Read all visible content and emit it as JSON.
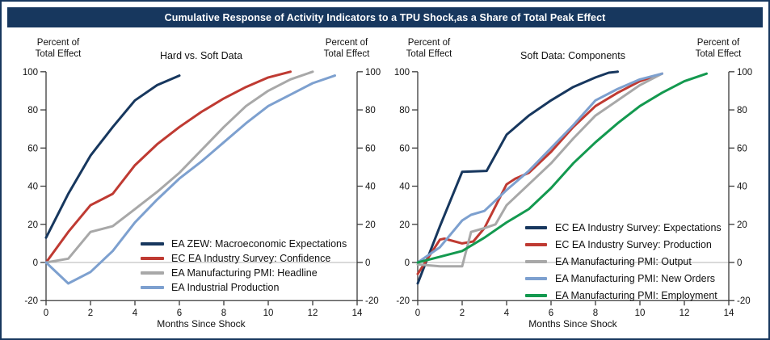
{
  "title_bar": {
    "text": "Cumulative Response of Activity Indicators to a TPU Shock,as a Share of Total Peak Effect",
    "bg_color": "#17375e",
    "text_color": "#ffffff"
  },
  "colors": {
    "navy": "#17375e",
    "red": "#bf3a32",
    "gray": "#a8a8a8",
    "light_blue": "#7da0cf",
    "green": "#13994f",
    "axis": "#3a3a3a",
    "zero_gridline": "#b5b5b5"
  },
  "chart_data": [
    {
      "type": "line",
      "title": "Hard vs. Soft Data",
      "y_header_lines": [
        "Percent of",
        "Total Effect"
      ],
      "x_label": "Months Since Shock",
      "xlim": [
        0,
        14
      ],
      "ylim": [
        -20,
        100
      ],
      "x_ticks": [
        0,
        2,
        4,
        6,
        8,
        10,
        12,
        14
      ],
      "y_ticks": [
        -20,
        0,
        20,
        40,
        60,
        80,
        100
      ],
      "gridline_y": 0,
      "legend_position": "inside-bottom-right",
      "series": [
        {
          "name": "EA ZEW: Macroeconomic Expectations",
          "color": "#17375e",
          "x": [
            0,
            1,
            2,
            3,
            4,
            5,
            6
          ],
          "values": [
            13,
            36,
            56,
            71,
            85,
            93,
            98
          ]
        },
        {
          "name": "EC EA Industry Survey: Confidence",
          "color": "#bf3a32",
          "x": [
            0,
            1,
            2,
            3,
            4,
            5,
            6,
            7,
            8,
            9,
            10,
            11
          ],
          "values": [
            0,
            16,
            30,
            36,
            51,
            62,
            71,
            79,
            86,
            92,
            97,
            100
          ]
        },
        {
          "name": "EA Manufacturing PMI: Headline",
          "color": "#a8a8a8",
          "x": [
            0,
            1,
            2,
            3,
            4,
            5,
            6,
            7,
            8,
            9,
            10,
            11,
            12
          ],
          "values": [
            0,
            2,
            16,
            19,
            28,
            37,
            47,
            59,
            71,
            82,
            90,
            96,
            100
          ]
        },
        {
          "name": "EA Industrial Production",
          "color": "#7da0cf",
          "x": [
            0,
            1,
            2,
            3,
            4,
            5,
            6,
            7,
            8,
            9,
            10,
            11,
            12,
            13
          ],
          "values": [
            0,
            -11,
            -5,
            6,
            21,
            33,
            44,
            53,
            63,
            73,
            82,
            88,
            94,
            98
          ]
        }
      ]
    },
    {
      "type": "line",
      "title": "Soft Data: Components",
      "y_header_lines": [
        "Percent of",
        "Total Effect"
      ],
      "x_label": "Months Since Shock",
      "xlim": [
        0,
        14
      ],
      "ylim": [
        -20,
        100
      ],
      "x_ticks": [
        0,
        2,
        4,
        6,
        8,
        10,
        12,
        14
      ],
      "y_ticks": [
        -20,
        0,
        20,
        40,
        60,
        80,
        100
      ],
      "gridline_y": 0,
      "legend_position": "inside-bottom-right",
      "series": [
        {
          "name": "EC EA Industry Survey: Expectations",
          "color": "#17375e",
          "x": [
            0,
            1,
            2,
            3.1,
            4,
            5,
            6,
            7,
            8,
            8.6,
            9
          ],
          "values": [
            -11,
            19,
            47.5,
            48,
            67,
            77,
            85,
            92,
            97,
            99.5,
            100
          ]
        },
        {
          "name": "EC EA Industry Survey: Production",
          "color": "#bf3a32",
          "x": [
            0,
            1,
            1.2,
            2,
            2.5,
            3,
            4,
            4.4,
            5,
            6,
            7,
            8,
            9,
            10,
            11
          ],
          "values": [
            -6,
            12,
            12.5,
            10,
            11,
            18,
            41,
            44,
            47,
            58,
            71,
            82,
            89,
            95,
            99
          ]
        },
        {
          "name": "EA Manufacturing PMI: Output",
          "color": "#a8a8a8",
          "x": [
            0,
            1,
            2,
            2.4,
            3,
            3.5,
            4,
            5,
            6,
            7,
            8,
            9,
            10,
            11
          ],
          "values": [
            -1,
            -2,
            -2,
            16,
            18,
            20,
            30,
            41,
            52,
            65,
            77,
            85,
            93,
            99
          ]
        },
        {
          "name": "EA Manufacturing PMI: New Orders",
          "color": "#7da0cf",
          "x": [
            0,
            1,
            2,
            2.4,
            3,
            4,
            5,
            6,
            7,
            8,
            9,
            10,
            11
          ],
          "values": [
            0,
            8,
            22,
            25,
            27,
            38,
            48,
            60,
            72,
            85,
            91,
            96,
            99
          ]
        },
        {
          "name": "EA Manufacturing PMI: Employment",
          "color": "#13994f",
          "x": [
            0,
            1,
            2,
            3,
            4,
            5,
            6,
            7,
            8,
            9,
            10,
            11,
            12,
            13
          ],
          "values": [
            0,
            3,
            6,
            13,
            21,
            28,
            39,
            52,
            63,
            73,
            82,
            89,
            95,
            99
          ]
        }
      ]
    }
  ]
}
